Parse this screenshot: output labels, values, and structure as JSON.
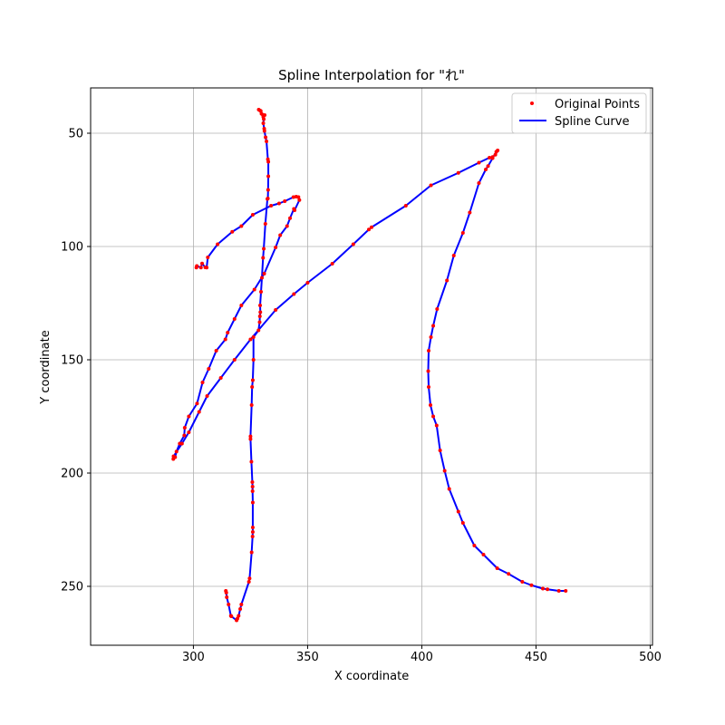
{
  "chart_data": {
    "type": "line",
    "title": "Spline Interpolation for \"れ\"",
    "xlabel": "X coordinate",
    "ylabel": "Y coordinate",
    "xlim": [
      255,
      501
    ],
    "ylim": [
      276,
      30
    ],
    "y_inverted": true,
    "x_ticks": [
      300,
      350,
      400,
      450,
      500
    ],
    "y_ticks": [
      50,
      100,
      150,
      200,
      250
    ],
    "grid": true,
    "legend": {
      "placement": "top-right",
      "entries": [
        "Original Points",
        "Spline Curve"
      ]
    },
    "colors": {
      "points": "#ff0000",
      "curve": "#0000ff",
      "grid": "#b0b0b0",
      "frame": "#000000"
    },
    "series": [
      {
        "name": "Original Points",
        "style": "markers",
        "strokes": [
          [
            [
              328.6,
              39.6
            ],
            [
              329.2,
              40.0
            ],
            [
              329.5,
              40.2
            ],
            [
              329.8,
              41.4
            ],
            [
              330.4,
              41.9
            ],
            [
              331.2,
              42.0
            ],
            [
              330.6,
              42.8
            ],
            [
              330.8,
              43.8
            ],
            [
              330.6,
              45.6
            ],
            [
              331.0,
              48.0
            ],
            [
              331.1,
              49.0
            ],
            [
              331.6,
              51.8
            ],
            [
              332.0,
              53.6
            ],
            [
              332.6,
              61.5
            ],
            [
              332.8,
              62.6
            ],
            [
              332.8,
              69.0
            ],
            [
              332.7,
              75.0
            ],
            [
              332.6,
              78.8
            ],
            [
              332.4,
              79.0
            ],
            [
              331.5,
              90.0
            ],
            [
              330.8,
              101.0
            ],
            [
              330.5,
              105.0
            ],
            [
              330.0,
              113.8
            ],
            [
              329.6,
              120.0
            ],
            [
              329.2,
              126.0
            ],
            [
              329.3,
              129.0
            ],
            [
              329.1,
              130.8
            ],
            [
              329.0,
              133.4
            ],
            [
              328.5,
              137.0
            ],
            [
              326.3,
              140.0
            ],
            [
              326.3,
              150.0
            ],
            [
              326.0,
              159.0
            ],
            [
              325.7,
              162.0
            ],
            [
              325.5,
              170.0
            ],
            [
              325.0,
              183.8
            ],
            [
              325.0,
              185.0
            ],
            [
              325.4,
              195.0
            ],
            [
              325.8,
              204.0
            ],
            [
              325.9,
              206.0
            ],
            [
              325.9,
              208.0
            ],
            [
              326.0,
              213.0
            ],
            [
              326.0,
              224.0
            ],
            [
              326.0,
              226.0
            ],
            [
              325.9,
              228.0
            ],
            [
              325.5,
              235.0
            ],
            [
              324.6,
              246.5
            ],
            [
              324.3,
              248.0
            ],
            [
              321.0,
              258.0
            ],
            [
              320.5,
              260.0
            ],
            [
              319.8,
              263.0
            ],
            [
              319.3,
              264.2
            ],
            [
              318.9,
              265.0
            ],
            [
              316.6,
              263.2
            ],
            [
              316.4,
              263.0
            ],
            [
              315.4,
              258.0
            ],
            [
              314.6,
              254.8
            ],
            [
              314.4,
              252.8
            ],
            [
              314.2,
              252.0
            ]
          ],
          [
            [
              301.3,
              109.3
            ],
            [
              301.5,
              108.6
            ],
            [
              303.3,
              109.3
            ],
            [
              303.8,
              107.5
            ],
            [
              305.2,
              109.2
            ],
            [
              305.8,
              109.3
            ],
            [
              306.3,
              104.8
            ],
            [
              310.6,
              99.0
            ],
            [
              317.0,
              93.5
            ],
            [
              321.0,
              91.0
            ],
            [
              326.0,
              86.0
            ],
            [
              334.0,
              82.0
            ],
            [
              337.5,
              81.0
            ],
            [
              340.0,
              80.0
            ],
            [
              343.8,
              78.2
            ],
            [
              345.0,
              78.0
            ],
            [
              346.0,
              78.2
            ],
            [
              346.4,
              79.5
            ],
            [
              344.3,
              84.0
            ],
            [
              344.0,
              83.4
            ],
            [
              342.3,
              87.5
            ],
            [
              341.0,
              91.0
            ],
            [
              338.0,
              95.0
            ],
            [
              336.0,
              100.4
            ],
            [
              331.0,
              112.0
            ],
            [
              326.7,
              119.0
            ],
            [
              321.0,
              126.0
            ],
            [
              318.0,
              132.0
            ],
            [
              315.0,
              138.0
            ],
            [
              314.0,
              141.0
            ],
            [
              310.0,
              146.0
            ],
            [
              306.7,
              154.0
            ],
            [
              304.0,
              160.0
            ],
            [
              301.6,
              169.3
            ],
            [
              298.0,
              175.0
            ],
            [
              296.2,
              180.0
            ],
            [
              296.0,
              183.4
            ],
            [
              294.0,
              187.0
            ],
            [
              292.6,
              190.5
            ],
            [
              292.0,
              193.0
            ],
            [
              291.2,
              193.8
            ],
            [
              291.3,
              192.6
            ],
            [
              295.0,
              187.0
            ],
            [
              298.0,
              182.0
            ],
            [
              302.5,
              173.0
            ],
            [
              306.0,
              166.0
            ],
            [
              312.0,
              158.0
            ],
            [
              318.0,
              150.0
            ],
            [
              325.0,
              141.0
            ],
            [
              336.0,
              128.0
            ],
            [
              344.0,
              121.0
            ],
            [
              350.0,
              116.0
            ],
            [
              360.8,
              107.6
            ],
            [
              370.0,
              99.0
            ],
            [
              376.8,
              92.5
            ],
            [
              378.0,
              91.5
            ],
            [
              393.0,
              82.0
            ],
            [
              404.0,
              73.0
            ],
            [
              416.0,
              67.5
            ],
            [
              425.0,
              63.0
            ],
            [
              429.6,
              60.8
            ],
            [
              431.0,
              60.5
            ],
            [
              432.2,
              59.5
            ],
            [
              433.2,
              57.6
            ],
            [
              432.6,
              58.2
            ],
            [
              431.0,
              61.0
            ],
            [
              429.0,
              64.5
            ],
            [
              428.0,
              66.0
            ],
            [
              425.0,
              72.0
            ],
            [
              421.0,
              85.0
            ],
            [
              418.0,
              94.0
            ],
            [
              414.0,
              104.0
            ],
            [
              411.0,
              115.0
            ],
            [
              406.7,
              127.6
            ],
            [
              405.0,
              135.0
            ],
            [
              404.0,
              140.0
            ],
            [
              403.0,
              146.0
            ],
            [
              402.8,
              155.0
            ],
            [
              403.0,
              162.0
            ],
            [
              403.8,
              170.0
            ],
            [
              405.0,
              175.0
            ],
            [
              406.5,
              179.0
            ],
            [
              408.0,
              190.0
            ],
            [
              410.0,
              199.0
            ],
            [
              412.0,
              207.0
            ],
            [
              416.0,
              217.0
            ],
            [
              418.0,
              222.0
            ],
            [
              423.0,
              232.0
            ],
            [
              427.0,
              236.0
            ],
            [
              433.0,
              242.0
            ],
            [
              438.0,
              244.5
            ],
            [
              444.0,
              248.0
            ],
            [
              448.0,
              249.5
            ],
            [
              453.0,
              251.0
            ],
            [
              455.0,
              251.3
            ],
            [
              460.0,
              252.0
            ],
            [
              463.0,
              252.0
            ]
          ]
        ]
      },
      {
        "name": "Spline Curve",
        "style": "line"
      }
    ]
  }
}
